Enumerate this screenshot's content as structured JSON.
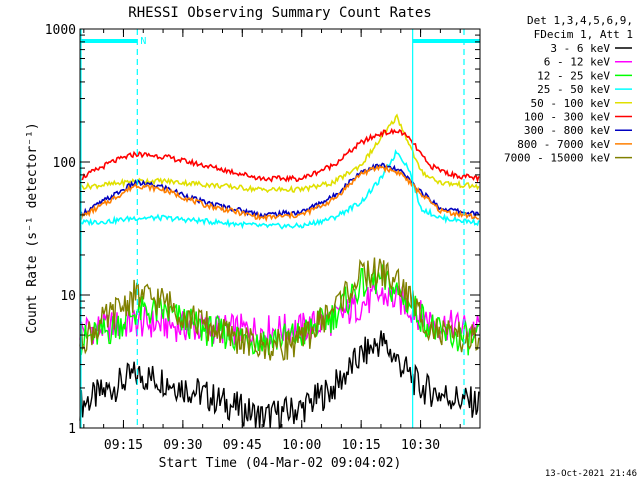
{
  "chart_data": {
    "type": "line",
    "title": "RHESSI Observing Summary Count Rates",
    "xlabel": "Start Time (04-Mar-02 09:04:02)",
    "ylabel": "Count Rate (s⁻¹ detector⁻¹)",
    "yscale": "log",
    "ylim": [
      1,
      1000
    ],
    "xlim": [
      "09:04:02",
      "10:45:00"
    ],
    "x_ticks": [
      "09:15",
      "09:30",
      "09:45",
      "10:00",
      "10:15",
      "10:30"
    ],
    "y_ticks": [
      "1",
      "10",
      "100",
      "1000"
    ],
    "legend_position": "right",
    "legend_header": [
      "Det 1,3,4,5,6,9,",
      "FDecim 1, Att 1"
    ],
    "footer": "13-Oct-2021 21:46",
    "flags": [
      {
        "label": "N",
        "start": "09:04:02",
        "end": "09:18:30",
        "color": "#00ffff"
      },
      {
        "label": "",
        "start": "10:28:00",
        "end": "10:45:00",
        "color": "#00ffff"
      }
    ],
    "vlines_solid": [
      "10:28:00"
    ],
    "vlines_dashed": [
      "09:18:30",
      "10:45:00"
    ],
    "series": [
      {
        "name": "3 - 6 keV",
        "color": "#000000",
        "x": [
          "09:04",
          "09:12",
          "09:18",
          "09:25",
          "09:35",
          "09:50",
          "10:00",
          "10:08",
          "10:15",
          "10:20",
          "10:25",
          "10:30",
          "10:35",
          "10:45"
        ],
        "y": [
          1.5,
          2.0,
          2.5,
          2.3,
          1.8,
          1.2,
          1.4,
          2.0,
          3.5,
          4.5,
          3.0,
          2.0,
          1.8,
          1.5
        ]
      },
      {
        "name": "6 - 12 keV",
        "color": "#ff00ff",
        "x": [
          "09:04",
          "09:12",
          "09:18",
          "09:25",
          "09:35",
          "09:50",
          "10:00",
          "10:08",
          "10:15",
          "10:20",
          "10:25",
          "10:30",
          "10:35",
          "10:45"
        ],
        "y": [
          5.5,
          5.8,
          6.2,
          6.0,
          5.6,
          5.4,
          5.6,
          6.5,
          8.5,
          10,
          9,
          7,
          6,
          5.5
        ]
      },
      {
        "name": "12 - 25 keV",
        "color": "#00ff00",
        "x": [
          "09:04",
          "09:12",
          "09:18",
          "09:25",
          "09:35",
          "09:50",
          "10:00",
          "10:08",
          "10:15",
          "10:20",
          "10:25",
          "10:30",
          "10:35",
          "10:45"
        ],
        "y": [
          4.5,
          5.5,
          7.5,
          7.5,
          5.5,
          4.5,
          5.0,
          7.0,
          12,
          13,
          10,
          7,
          5,
          4.5
        ]
      },
      {
        "name": "25 - 50 keV",
        "color": "#00ffff",
        "x": [
          "09:04",
          "09:12",
          "09:18",
          "09:25",
          "09:35",
          "09:50",
          "10:00",
          "10:08",
          "10:15",
          "10:20",
          "10:24",
          "10:27",
          "10:30",
          "10:35",
          "10:45"
        ],
        "y": [
          35,
          36,
          38,
          38,
          36,
          33,
          33,
          38,
          50,
          75,
          120,
          90,
          45,
          38,
          35
        ]
      },
      {
        "name": "50 - 100 keV",
        "color": "#e0e000",
        "x": [
          "09:04",
          "09:12",
          "09:18",
          "09:25",
          "09:35",
          "09:50",
          "10:00",
          "10:08",
          "10:15",
          "10:20",
          "10:24",
          "10:27",
          "10:30",
          "10:35",
          "10:45"
        ],
        "y": [
          65,
          68,
          72,
          72,
          68,
          62,
          62,
          70,
          95,
          150,
          220,
          140,
          85,
          70,
          65
        ]
      },
      {
        "name": "100 - 300 keV",
        "color": "#ff0000",
        "x": [
          "09:04",
          "09:12",
          "09:18",
          "09:25",
          "09:35",
          "09:50",
          "10:00",
          "10:08",
          "10:15",
          "10:20",
          "10:25",
          "10:28",
          "10:32",
          "10:38",
          "10:45"
        ],
        "y": [
          75,
          100,
          115,
          110,
          95,
          75,
          75,
          95,
          140,
          165,
          170,
          140,
          95,
          80,
          75
        ]
      },
      {
        "name": "300 - 800 keV",
        "color": "#0000c0",
        "x": [
          "09:04",
          "09:12",
          "09:18",
          "09:25",
          "09:35",
          "09:50",
          "10:00",
          "10:08",
          "10:15",
          "10:20",
          "10:25",
          "10:30",
          "10:35",
          "10:45"
        ],
        "y": [
          40,
          55,
          70,
          65,
          50,
          40,
          42,
          55,
          85,
          95,
          85,
          60,
          45,
          40
        ]
      },
      {
        "name": "800 - 7000 keV",
        "color": "#ff7f00",
        "x": [
          "09:04",
          "09:12",
          "09:18",
          "09:25",
          "09:35",
          "09:50",
          "10:00",
          "10:08",
          "10:15",
          "10:20",
          "10:25",
          "10:30",
          "10:35",
          "10:45"
        ],
        "y": [
          38,
          52,
          67,
          62,
          48,
          38,
          40,
          52,
          82,
          92,
          82,
          58,
          43,
          38
        ]
      },
      {
        "name": "7000 - 15000 keV",
        "color": "#808000",
        "x": [
          "09:04",
          "09:12",
          "09:18",
          "09:25",
          "09:35",
          "09:50",
          "10:00",
          "10:08",
          "10:15",
          "10:20",
          "10:25",
          "10:30",
          "10:35",
          "10:45"
        ],
        "y": [
          4.5,
          7.0,
          10,
          9.0,
          6.0,
          4.0,
          4.5,
          8.0,
          14,
          15,
          12,
          7.0,
          5.0,
          4.5
        ]
      }
    ]
  }
}
